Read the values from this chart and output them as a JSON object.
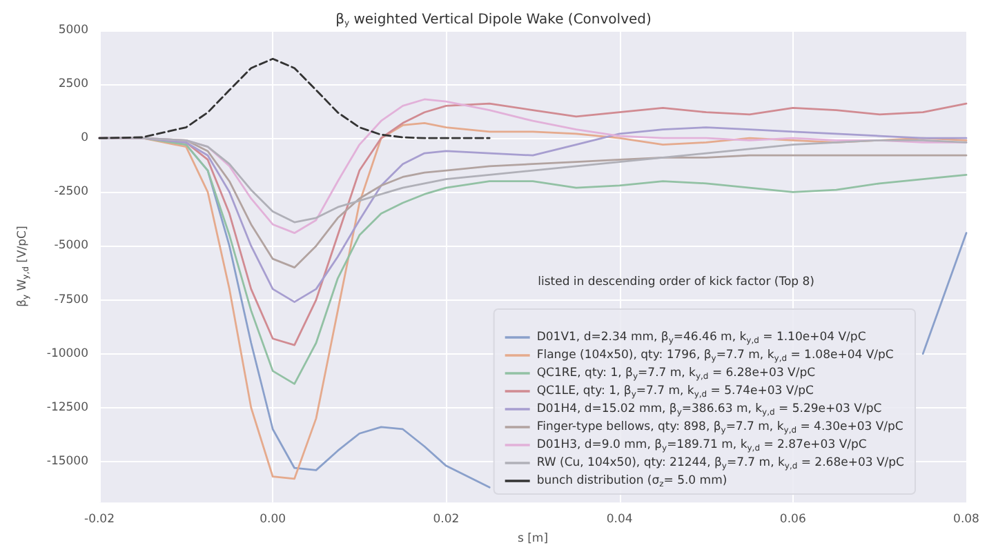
{
  "chart_data": {
    "type": "line",
    "title": "β$_{y}$ weighted Vertical Dipole Wake (Convolved)",
    "xlabel": "s [m]",
    "ylabel": "β$_{y}$ W$_{y,d}$ [V/pC]",
    "legend_title": "listed in descending order of kick factor (Top 8)",
    "x": [
      -0.02,
      -0.015,
      -0.01,
      -0.0075,
      -0.005,
      -0.0025,
      0,
      0.0025,
      0.005,
      0.0075,
      0.01,
      0.0125,
      0.015,
      0.0175,
      0.02,
      0.025,
      0.03,
      0.035,
      0.04,
      0.045,
      0.05,
      0.055,
      0.06,
      0.065,
      0.07,
      0.075,
      0.08
    ],
    "series": [
      {
        "name": "D01V1, d=2.34 mm, β$_{y}$=46.46 m, k$_{y,d}$ = 1.10e+04 V/pC",
        "color": "#8aa0cb",
        "values": [
          0,
          0,
          -300,
          -1500,
          -5000,
          -9500,
          -13500,
          -15300,
          -15400,
          -14500,
          -13700,
          -13400,
          -13500,
          -14300,
          -15200,
          -16200,
          null,
          null,
          null,
          null,
          null,
          null,
          null,
          null,
          null,
          -10000,
          -4400
        ]
      },
      {
        "name": "Flange (104x50), qty: 1796, β$_{y}$=7.7 m, k$_{y,d}$ = 1.08e+04 V/pC",
        "color": "#e5aa8d",
        "values": [
          0,
          0,
          -400,
          -2500,
          -7000,
          -12500,
          -15700,
          -15800,
          -13000,
          -8000,
          -3000,
          0,
          600,
          700,
          500,
          300,
          300,
          200,
          0,
          -300,
          -200,
          0,
          -100,
          -200,
          -100,
          0,
          -100
        ]
      },
      {
        "name": "QC1RE, qty: 1, β$_{y}$=7.7 m, k$_{y,d}$ = 6.28e+03 V/pC",
        "color": "#92c1a4",
        "values": [
          0,
          0,
          -300,
          -1500,
          -4500,
          -8000,
          -10800,
          -11400,
          -9500,
          -6500,
          -4500,
          -3500,
          -3000,
          -2600,
          -2300,
          -2000,
          -2000,
          -2300,
          -2200,
          -2000,
          -2100,
          -2300,
          -2500,
          -2400,
          -2100,
          -1900,
          -1700
        ]
      },
      {
        "name": "QC1LE, qty: 1, β$_{y}$=7.7 m, k$_{y,d}$ = 5.74e+03 V/pC",
        "color": "#d18b92",
        "values": [
          0,
          0,
          -200,
          -1000,
          -3500,
          -7000,
          -9300,
          -9600,
          -7500,
          -4500,
          -1500,
          0,
          700,
          1200,
          1500,
          1600,
          1300,
          1000,
          1200,
          1400,
          1200,
          1100,
          1400,
          1300,
          1100,
          1200,
          1600
        ]
      },
      {
        "name": "D01H4, d=15.02 mm, β$_{y}$=386.63 m, k$_{y,d}$ = 5.29e+03 V/pC",
        "color": "#a79ed0",
        "values": [
          0,
          0,
          -200,
          -800,
          -2500,
          -5000,
          -7000,
          -7600,
          -7000,
          -5500,
          -3800,
          -2200,
          -1200,
          -700,
          -600,
          -700,
          -800,
          -300,
          200,
          400,
          500,
          400,
          300,
          200,
          100,
          0,
          0
        ]
      },
      {
        "name": "Finger-type bellows, qty: 898, β$_{y}$=7.7 m, k$_{y,d}$ = 4.30e+03 V/pC",
        "color": "#b2a3a0",
        "values": [
          0,
          0,
          -100,
          -600,
          -2000,
          -4000,
          -5600,
          -6000,
          -5000,
          -3700,
          -2800,
          -2200,
          -1800,
          -1600,
          -1500,
          -1300,
          -1200,
          -1100,
          -1000,
          -900,
          -900,
          -800,
          -800,
          -800,
          -800,
          -800,
          -800
        ]
      },
      {
        "name": "D01H3, d=9.0 mm, β$_{y}$=189.71 m, k$_{y,d}$ = 2.87e+03 V/pC",
        "color": "#e2b1d9",
        "values": [
          0,
          0,
          -100,
          -400,
          -1300,
          -2800,
          -4000,
          -4400,
          -3800,
          -2000,
          -300,
          800,
          1500,
          1800,
          1700,
          1300,
          800,
          400,
          100,
          0,
          0,
          -100,
          0,
          -100,
          -100,
          -200,
          -200
        ]
      },
      {
        "name": "RW (Cu, 104x50), qty: 21244, β$_{y}$=7.7 m, k$_{y,d}$ = 2.68e+03 V/pC",
        "color": "#b0b0b8",
        "values": [
          0,
          0,
          -100,
          -400,
          -1200,
          -2400,
          -3400,
          -3900,
          -3700,
          -3200,
          -2900,
          -2600,
          -2300,
          -2100,
          -1900,
          -1700,
          -1500,
          -1300,
          -1100,
          -900,
          -700,
          -500,
          -300,
          -200,
          -100,
          -100,
          -200
        ]
      },
      {
        "name": "bunch distribution (σ$_{z}$= 5.0 mm)",
        "color": "#333333",
        "line_style": "dashed",
        "values": [
          0,
          40,
          500,
          1190,
          2230,
          3250,
          3680,
          3250,
          2230,
          1190,
          500,
          160,
          40,
          0,
          0,
          0,
          null,
          null,
          null,
          null,
          null,
          null,
          null,
          null,
          null,
          null,
          null
        ]
      }
    ],
    "xlim": [
      -0.02,
      0.08
    ],
    "xticks": [
      {
        "value": -0.02,
        "label": "-0.02"
      },
      {
        "value": 0,
        "label": "0.00"
      },
      {
        "value": 0.02,
        "label": "0.02"
      },
      {
        "value": 0.04,
        "label": "0.04"
      },
      {
        "value": 0.06,
        "label": "0.06"
      },
      {
        "value": 0.08,
        "label": "0.08"
      }
    ],
    "ylim": [
      -16900,
      5000
    ],
    "yticks": [
      -15000,
      -12500,
      -10000,
      -7500,
      -5000,
      -2500,
      0,
      2500,
      5000
    ],
    "grid": true,
    "legend": "bottom right",
    "marker": "none",
    "line_style": "solid"
  }
}
